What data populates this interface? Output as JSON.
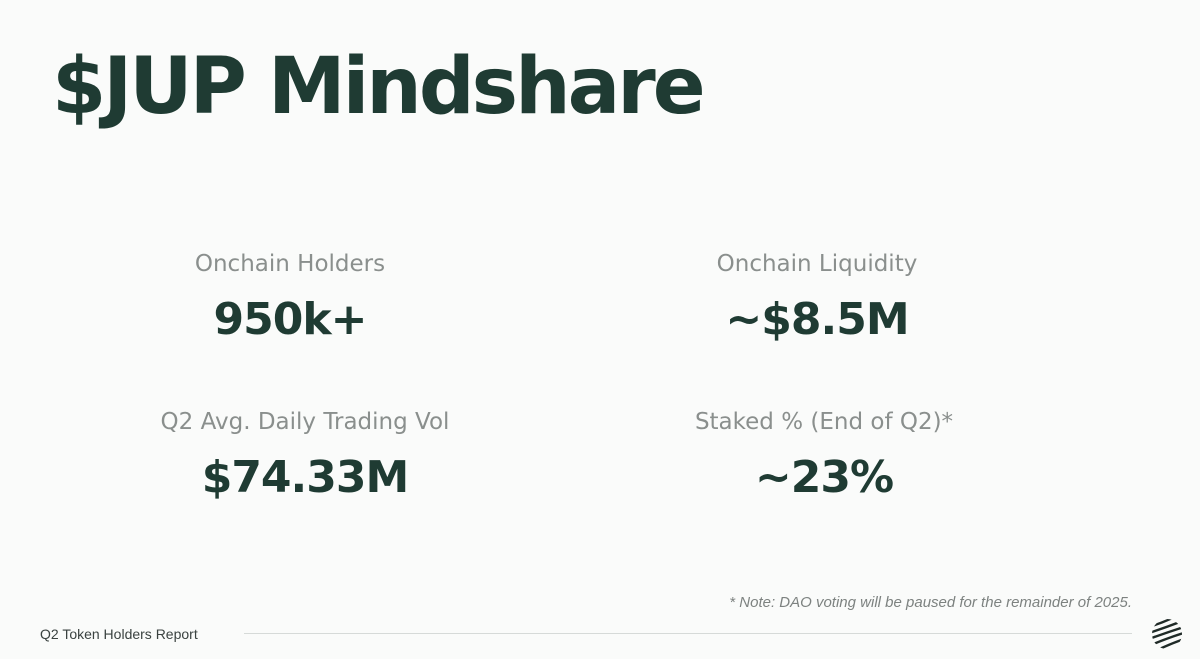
{
  "slide": {
    "title": "$JUP Mindshare",
    "stats": [
      {
        "label": "Onchain Holders",
        "value": "950k+"
      },
      {
        "label": "Onchain Liquidity",
        "value": "~$8.5M"
      },
      {
        "label": "Q2 Avg. Daily Trading Vol",
        "value": "$74.33M"
      },
      {
        "label": "Staked % (End of Q2)*",
        "value": "~23%"
      }
    ],
    "note": "* Note:  DAO voting will be paused for the remainder of 2025.",
    "footer": "Q2 Token Holders Report",
    "logo_icon": "jupiter-logo-icon",
    "colors": {
      "primary_text": "#1f3b33",
      "label_text": "#8a8f8d",
      "background": "#fafbfa"
    }
  }
}
